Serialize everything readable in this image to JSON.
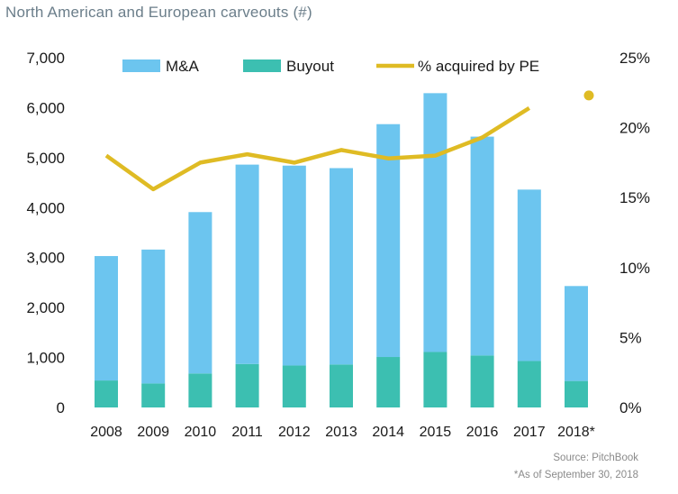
{
  "chart_data": {
    "type": "bar",
    "title": "North American and European carveouts (#)",
    "categories": [
      "2008",
      "2009",
      "2010",
      "2011",
      "2012",
      "2013",
      "2014",
      "2015",
      "2016",
      "2017",
      "2018*"
    ],
    "series": [
      {
        "name": "M&A",
        "type": "stacked-bar",
        "axis": "left",
        "values": [
          2490,
          2680,
          3230,
          3990,
          4000,
          3930,
          4660,
          5180,
          4380,
          3430,
          1900
        ]
      },
      {
        "name": "Buyout",
        "type": "stacked-bar",
        "axis": "left",
        "values": [
          540,
          480,
          680,
          870,
          840,
          860,
          1010,
          1110,
          1040,
          930,
          530
        ]
      },
      {
        "name": "% acquired by PE",
        "type": "line",
        "axis": "right",
        "values": [
          18.0,
          15.6,
          17.5,
          18.1,
          17.5,
          18.4,
          17.8,
          18.0,
          19.3,
          21.4,
          22.3
        ],
        "last_point_separate": true
      }
    ],
    "ylim": [
      0,
      7000
    ],
    "yticks": [
      "0",
      "1,000",
      "2,000",
      "3,000",
      "4,000",
      "5,000",
      "6,000",
      "7,000"
    ],
    "y2lim": [
      0,
      25
    ],
    "y2ticks": [
      "0%",
      "5%",
      "10%",
      "15%",
      "20%",
      "25%"
    ],
    "legend_position": "top",
    "grid": false
  },
  "colors": {
    "ma": "#6cc5ef",
    "buyout": "#3cbfb1",
    "line": "#dfbb24",
    "title": "#6b7e8a",
    "text": "#1a1a1a"
  },
  "footer": {
    "source": "Source: PitchBook",
    "note": "*As of September 30, 2018"
  }
}
